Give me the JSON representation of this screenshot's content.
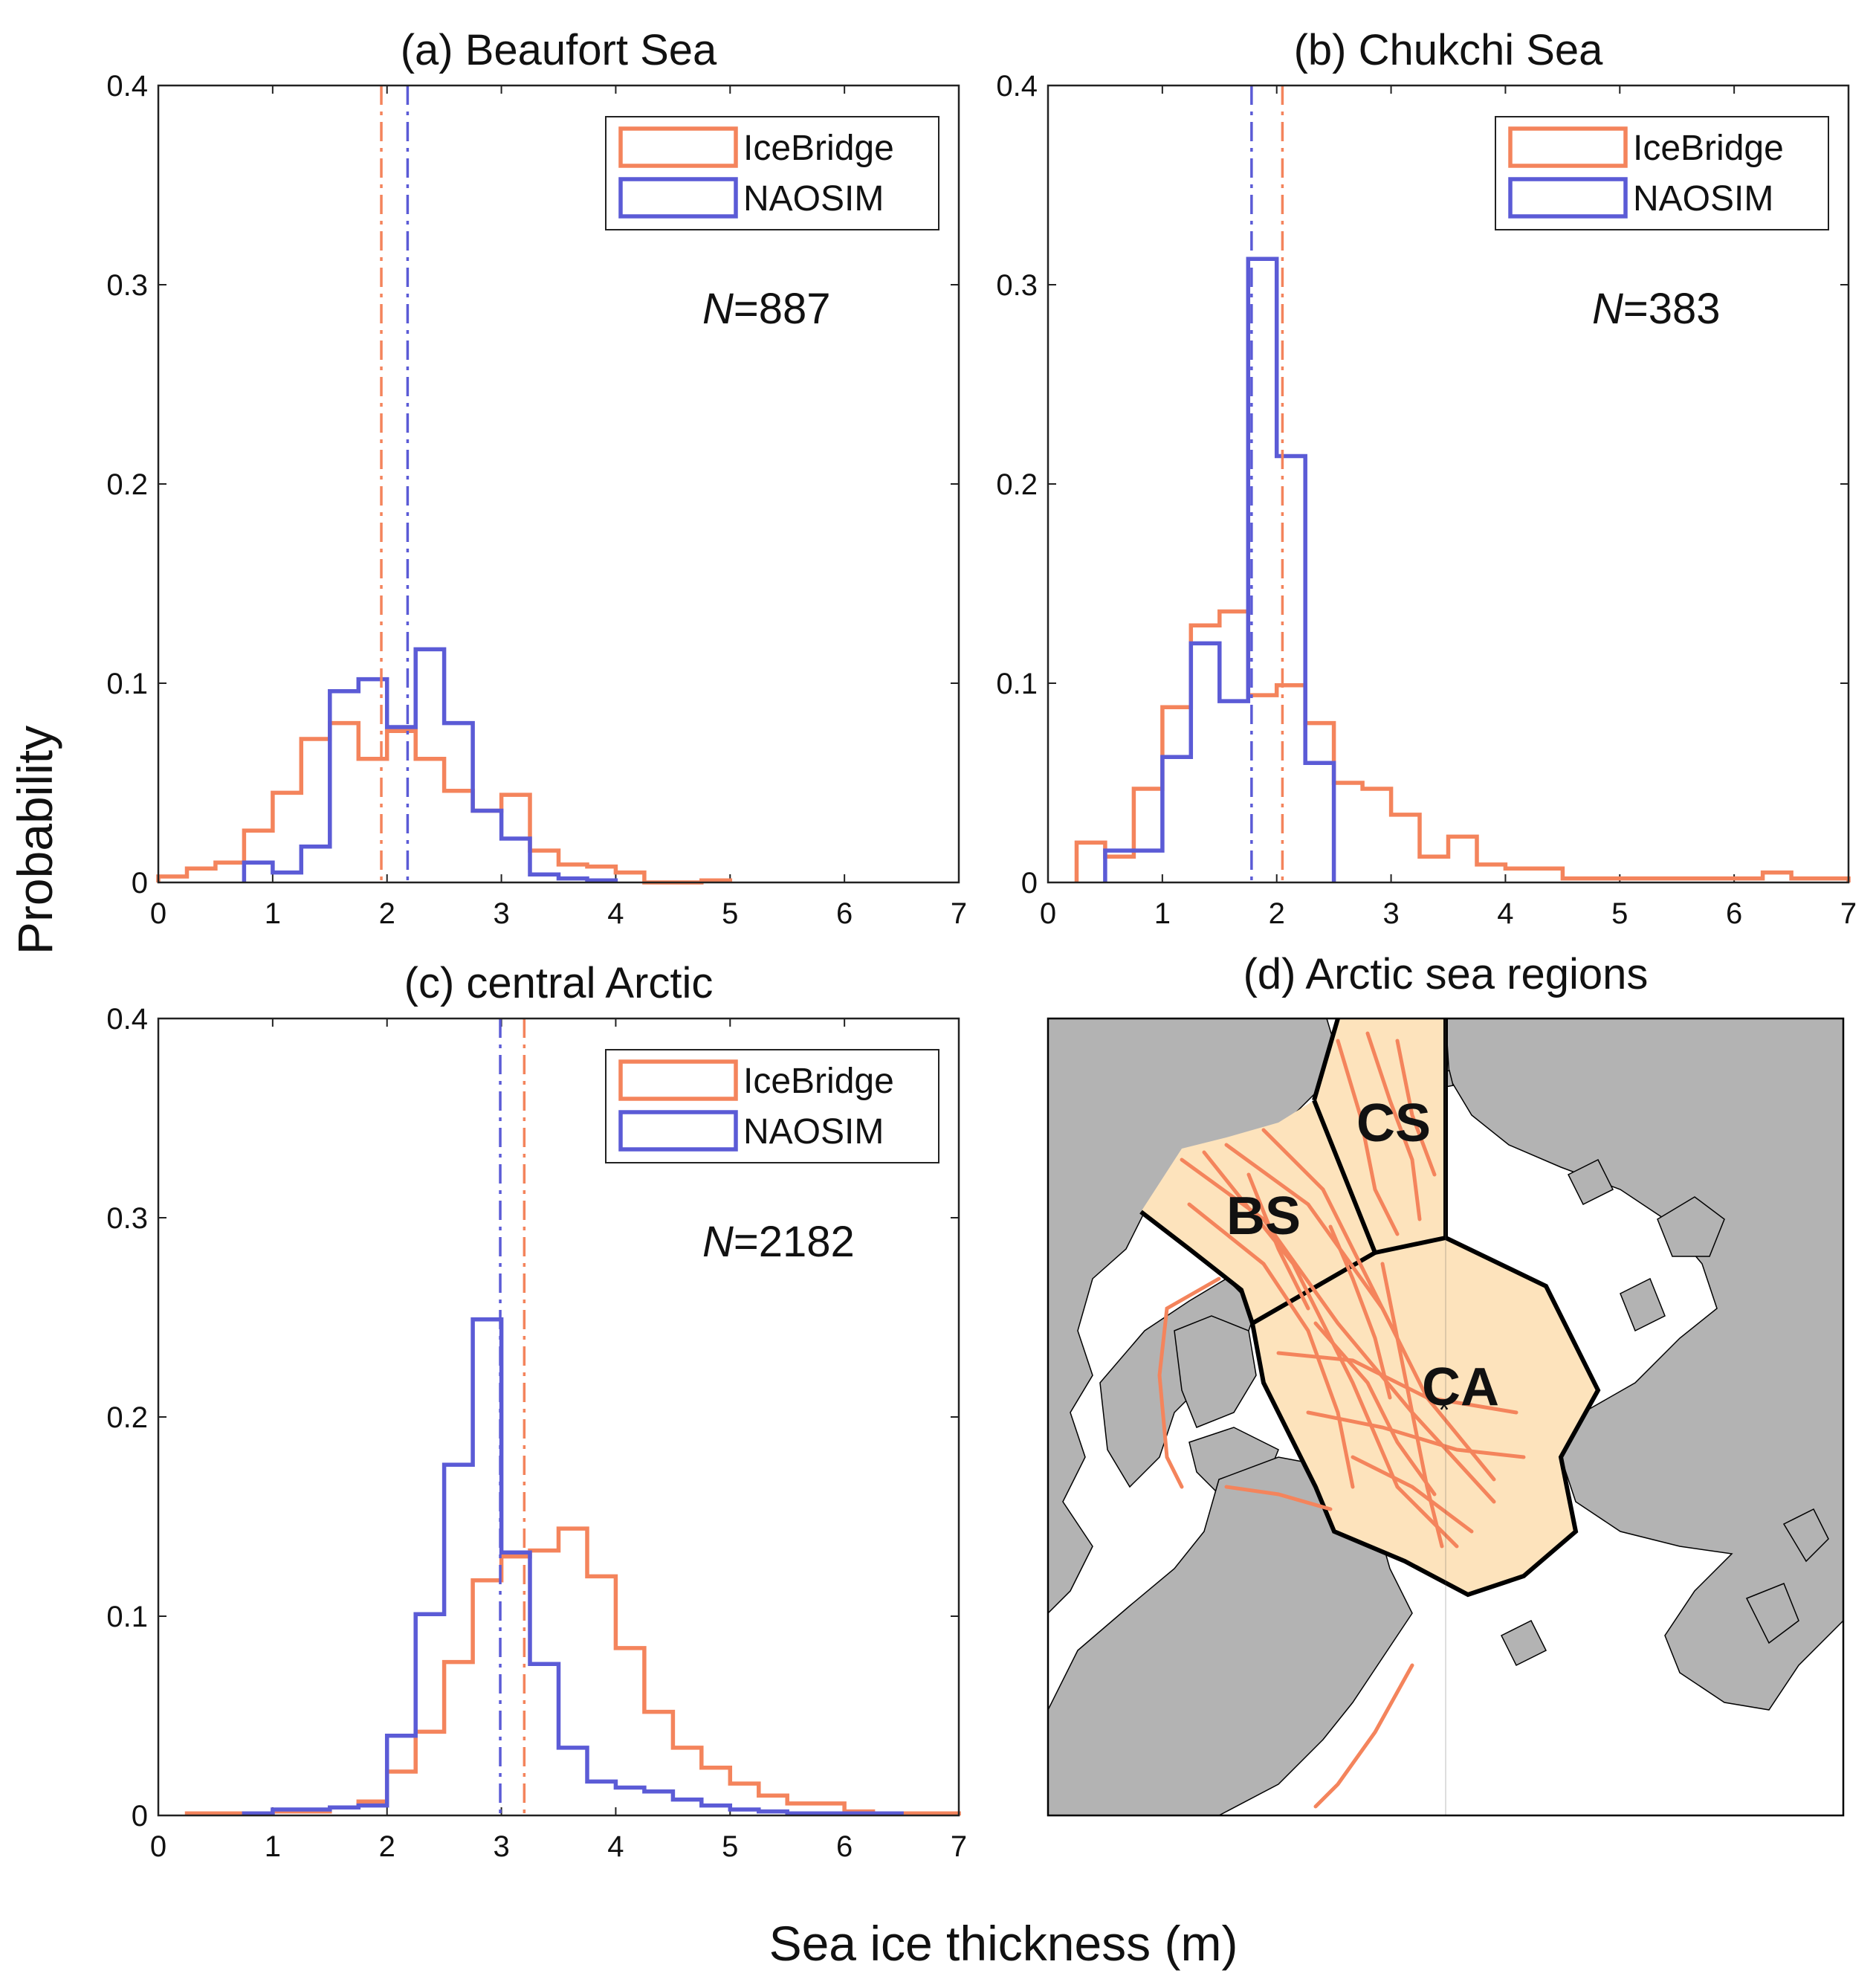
{
  "figure": {
    "ylabel": "Probability",
    "xlabel": "Sea ice thickness (m)"
  },
  "colors": {
    "icebridge": "#f4845c",
    "naosim": "#5b5bd6",
    "land": "#b3b3b3",
    "region_fill": "#fde3bc"
  },
  "chart_data": [
    {
      "type": "histogram",
      "title": "(a)  Beaufort Sea",
      "n_label": "=887",
      "xlim": [
        0,
        7
      ],
      "ylim": [
        0,
        0.4
      ],
      "xticks": [
        0,
        1,
        2,
        3,
        4,
        5,
        6,
        7
      ],
      "yticks": [
        0,
        0.1,
        0.2,
        0.3,
        0.4
      ],
      "legend": [
        "IceBridge",
        "NAOSIM"
      ],
      "legend_position": "top-right",
      "bin_width": 0.25,
      "series": [
        {
          "name": "IceBridge",
          "bin_start": 0.0,
          "values": [
            0.003,
            0.007,
            0.01,
            0.026,
            0.045,
            0.072,
            0.08,
            0.062,
            0.076,
            0.062,
            0.046,
            0.036,
            0.044,
            0.016,
            0.009,
            0.008,
            0.005,
            0.0,
            0.0,
            0.001
          ]
        },
        {
          "name": "NAOSIM",
          "bin_start": 0.75,
          "values": [
            0.01,
            0.005,
            0.018,
            0.096,
            0.102,
            0.078,
            0.117,
            0.08,
            0.036,
            0.022,
            0.004,
            0.002,
            0.001
          ]
        }
      ],
      "means": [
        1.95,
        2.18
      ]
    },
    {
      "type": "histogram",
      "title": "(b)  Chukchi Sea",
      "n_label": "=383",
      "xlim": [
        0,
        7
      ],
      "ylim": [
        0,
        0.4
      ],
      "xticks": [
        0,
        1,
        2,
        3,
        4,
        5,
        6,
        7
      ],
      "yticks": [
        0,
        0.1,
        0.2,
        0.3,
        0.4
      ],
      "legend": [
        "IceBridge",
        "NAOSIM"
      ],
      "legend_position": "top-right",
      "bin_width": 0.25,
      "series": [
        {
          "name": "IceBridge",
          "bin_start": 0.25,
          "values": [
            0.02,
            0.013,
            0.047,
            0.088,
            0.129,
            0.136,
            0.094,
            0.099,
            0.08,
            0.05,
            0.047,
            0.034,
            0.013,
            0.023,
            0.009,
            0.007,
            0.007,
            0.002,
            0.002,
            0.002,
            0.002,
            0.002,
            0.002,
            0.002,
            0.005,
            0.002,
            0.002
          ]
        },
        {
          "name": "NAOSIM",
          "bin_start": 0.5,
          "values": [
            0.016,
            0.016,
            0.063,
            0.12,
            0.091,
            0.313,
            0.214,
            0.06
          ]
        }
      ],
      "means": [
        2.05,
        1.78
      ]
    },
    {
      "type": "histogram",
      "title": "(c)  central Arctic",
      "n_label": "=2182",
      "xlim": [
        0,
        7
      ],
      "ylim": [
        0,
        0.4
      ],
      "xticks": [
        0,
        1,
        2,
        3,
        4,
        5,
        6,
        7
      ],
      "yticks": [
        0,
        0.1,
        0.2,
        0.3,
        0.4
      ],
      "legend": [
        "IceBridge",
        "NAOSIM"
      ],
      "legend_position": "top-right",
      "bin_width": 0.25,
      "series": [
        {
          "name": "IceBridge",
          "bin_start": 0.25,
          "values": [
            0.001,
            0.001,
            0.001,
            0.002,
            0.002,
            0.004,
            0.007,
            0.022,
            0.042,
            0.077,
            0.118,
            0.13,
            0.133,
            0.144,
            0.12,
            0.084,
            0.052,
            0.034,
            0.024,
            0.016,
            0.01,
            0.006,
            0.006,
            0.002,
            0.001,
            0.001,
            0.001
          ]
        },
        {
          "name": "NAOSIM",
          "bin_start": 0.75,
          "values": [
            0.001,
            0.003,
            0.003,
            0.004,
            0.005,
            0.04,
            0.101,
            0.176,
            0.249,
            0.132,
            0.076,
            0.034,
            0.017,
            0.014,
            0.012,
            0.008,
            0.005,
            0.003,
            0.002,
            0.001,
            0.001,
            0.001,
            0.001
          ]
        }
      ],
      "means": [
        3.2,
        2.99
      ]
    }
  ],
  "map": {
    "title": "(d) Arctic sea regions",
    "regions": [
      {
        "code": "BS"
      },
      {
        "code": "CS"
      },
      {
        "code": "CA"
      }
    ]
  }
}
